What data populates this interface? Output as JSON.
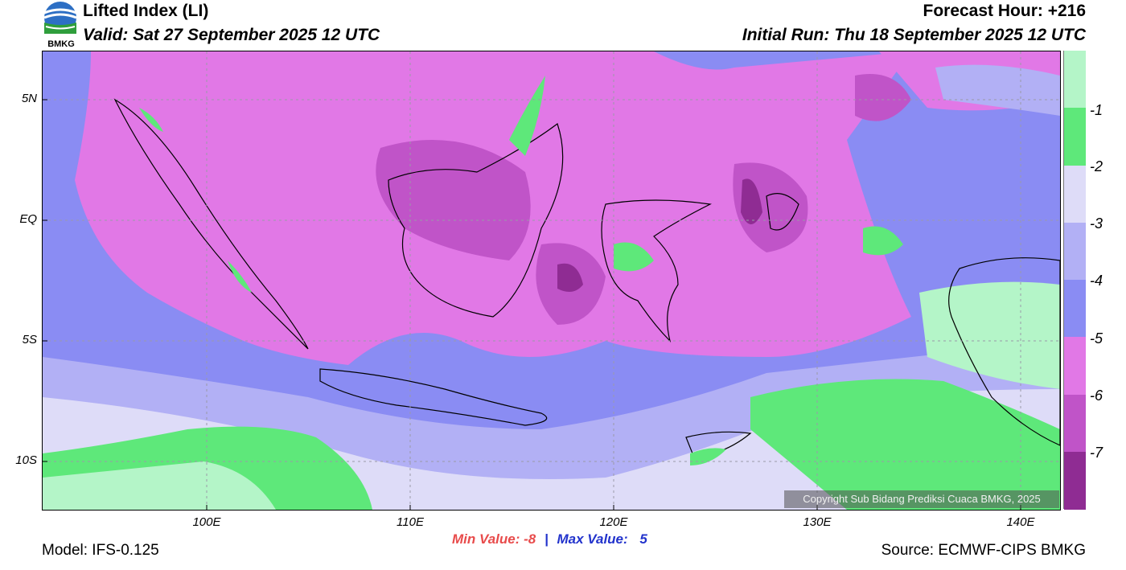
{
  "header": {
    "title": "Lifted Index (LI)",
    "valid": "Valid: Sat 27 September 2025 12 UTC",
    "forecast_hour": "Forecast Hour: +216",
    "initial_run": "Initial Run: Thu 18 September 2025 12 UTC",
    "logo_text": "BMKG"
  },
  "map": {
    "lat_labels": [
      "5N",
      "EQ",
      "5S",
      "10S"
    ],
    "lon_labels": [
      "100E",
      "110E",
      "120E",
      "130E",
      "140E"
    ],
    "copyright": "Copyright Sub Bidang Prediksi Cuaca BMKG, 2025"
  },
  "colorbar": {
    "labels": [
      "-1",
      "-2",
      "-3",
      "-4",
      "-5",
      "-6",
      "-7"
    ],
    "colors": [
      "#b4f5c8",
      "#5ee87a",
      "#dedcf8",
      "#b2b0f5",
      "#8a8cf3",
      "#e178e6",
      "#c054c8",
      "#8f2c93"
    ]
  },
  "stats": {
    "min_label": "Min Value:",
    "min_value": "-8",
    "separator": "|",
    "max_label": "Max Value:",
    "max_value": "5"
  },
  "footer": {
    "model": "Model: IFS-0.125",
    "source": "Source: ECMWF-CIPS BMKG"
  }
}
